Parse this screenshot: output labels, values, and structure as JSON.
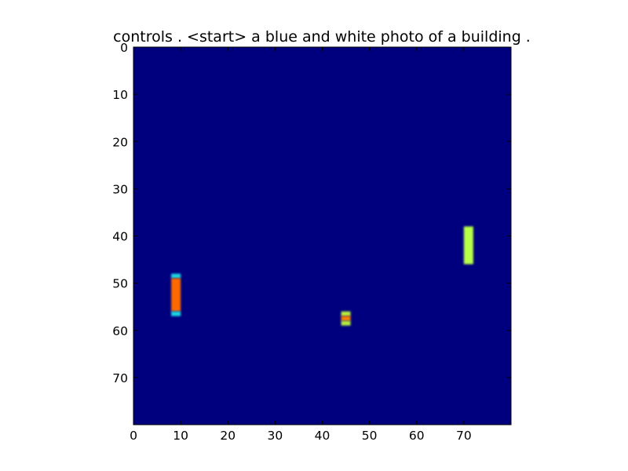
{
  "chart_data": {
    "type": "heatmap",
    "title": "controls . <start> a blue and white photo of a building .",
    "xlabel": "",
    "ylabel": "",
    "xlim": [
      0,
      80
    ],
    "ylim": [
      80,
      0
    ],
    "x_ticks": [
      0,
      10,
      20,
      30,
      40,
      50,
      60,
      70
    ],
    "y_ticks": [
      0,
      10,
      20,
      30,
      40,
      50,
      60,
      70
    ],
    "colormap": "jet",
    "background_color": "#00007f",
    "grid": false,
    "regions": [
      {
        "x_range": [
          8,
          10
        ],
        "y_range": [
          48,
          49
        ],
        "color": "#1fd4e0"
      },
      {
        "x_range": [
          8,
          10
        ],
        "y_range": [
          49,
          56
        ],
        "color": "#ff6a00"
      },
      {
        "x_range": [
          8,
          10
        ],
        "y_range": [
          56,
          57
        ],
        "color": "#1fd4e0"
      },
      {
        "x_range": [
          44,
          46
        ],
        "y_range": [
          56,
          57
        ],
        "color": "#b8ee3e"
      },
      {
        "x_range": [
          44,
          46
        ],
        "y_range": [
          57,
          58
        ],
        "color": "#ff7f00"
      },
      {
        "x_range": [
          44,
          46
        ],
        "y_range": [
          58,
          59
        ],
        "color": "#b8ee3e"
      },
      {
        "x_range": [
          70,
          72
        ],
        "y_range": [
          38,
          46
        ],
        "color": "#b7ff4a"
      }
    ]
  }
}
